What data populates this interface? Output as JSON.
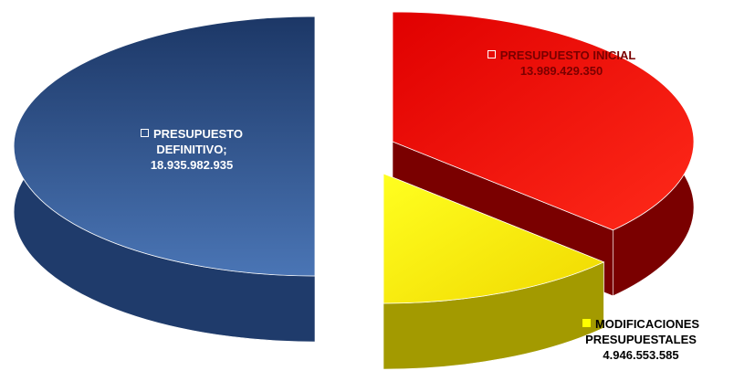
{
  "chart_data": {
    "type": "pie3d",
    "categories": [
      "PRESUPUESTO DEFINITIVO;",
      "PRESUPUESTO INICIAL",
      "MODIFICACIONES PRESUPUESTALES"
    ],
    "values": [
      18935982935,
      13989429350,
      4946553585
    ],
    "value_labels": [
      "18.935.982.935",
      "13.989.429.350",
      "4.946.553.585"
    ],
    "colors": [
      "#2f5491",
      "#ff0000",
      "#ffff00"
    ]
  }
}
